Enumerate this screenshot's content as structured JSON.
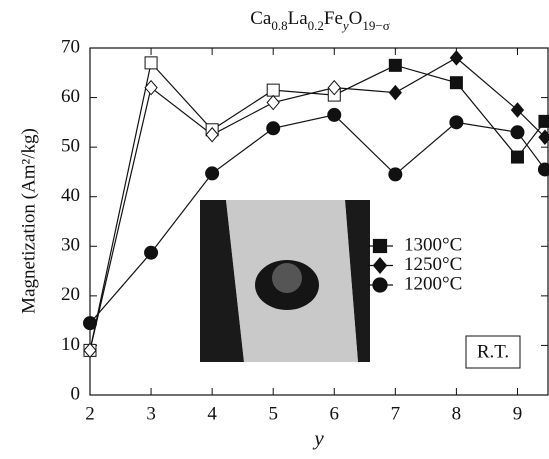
{
  "chart_data": {
    "type": "line",
    "title_parts": [
      [
        "Ca",
        "0.8"
      ],
      [
        "La",
        "0.2"
      ],
      [
        "Fe",
        "y"
      ],
      [
        "O",
        "19−σ"
      ]
    ],
    "xlabel": "y",
    "ylabel": "Magnetization (Am²/kg)",
    "annotation": "R.T.",
    "xlim": [
      2,
      9.5
    ],
    "ylim": [
      0,
      70
    ],
    "xticks": [
      2,
      3,
      4,
      5,
      6,
      7,
      8,
      9
    ],
    "yticks": [
      0,
      10,
      20,
      30,
      40,
      50,
      60,
      70
    ],
    "legend": "center-right",
    "series": [
      {
        "name": "1300°C",
        "color": "#111111",
        "marker": "square",
        "x": [
          2,
          3,
          4,
          5,
          6,
          7,
          8,
          9,
          9.45
        ],
        "values": [
          9,
          67,
          53.5,
          61.5,
          60.5,
          66.5,
          63,
          48,
          55.2
        ],
        "filled": [
          false,
          false,
          false,
          false,
          false,
          true,
          true,
          true,
          true
        ]
      },
      {
        "name": "1250°C",
        "color": "#111111",
        "marker": "diamond",
        "x": [
          2,
          3,
          4,
          5,
          6,
          7,
          8,
          9,
          9.45
        ],
        "values": [
          9,
          62,
          52.5,
          59,
          62,
          61,
          68,
          57.5,
          52
        ],
        "filled": [
          false,
          false,
          false,
          false,
          false,
          true,
          true,
          true,
          true
        ]
      },
      {
        "name": "1200°C",
        "color": "#111111",
        "marker": "circle",
        "x": [
          2,
          3,
          4,
          5,
          6,
          7,
          8,
          9,
          9.45
        ],
        "values": [
          14.5,
          28.7,
          44.7,
          53.8,
          56.5,
          44.5,
          55,
          53,
          45.5
        ],
        "filled": [
          true,
          true,
          true,
          true,
          true,
          true,
          true,
          true,
          true
        ]
      }
    ]
  }
}
